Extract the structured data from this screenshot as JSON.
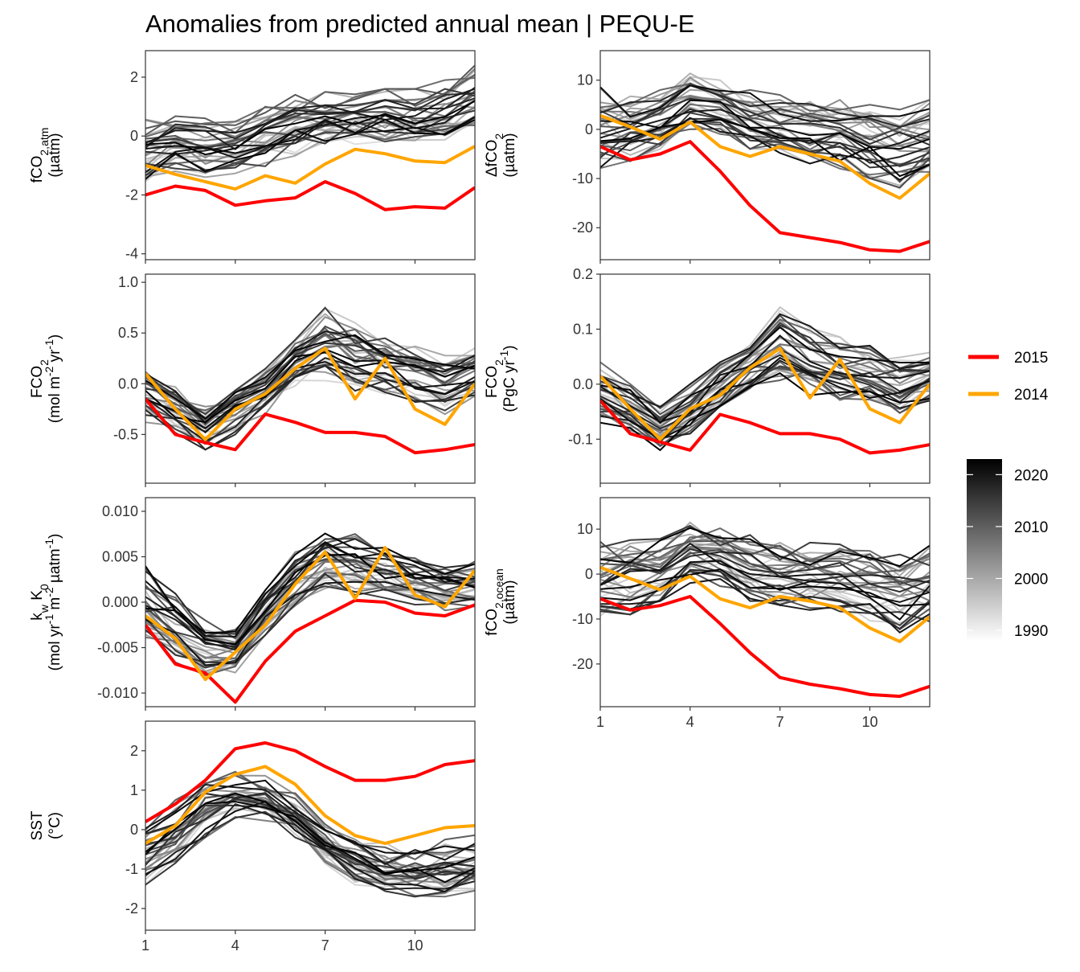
{
  "title": "Anomalies from predicted annual mean | PEQU-E",
  "colors": {
    "highlight_2015": "#ff0000",
    "highlight_2014": "#ffa500",
    "gradient_low": "#ffffff",
    "gradient_high": "#000000"
  },
  "legend": {
    "lines": [
      {
        "label": "2015",
        "color": "#ff0000"
      },
      {
        "label": "2014",
        "color": "#ffa500"
      }
    ],
    "colorbar": {
      "labels": [
        "2020",
        "2010",
        "2000",
        "1990"
      ],
      "min_year": 1988,
      "max_year": 2023
    }
  },
  "chart_data": [
    {
      "type": "line",
      "id": "fco2_atm",
      "ylabel": [
        "fCO2,atm",
        "(µatm)"
      ],
      "xlim": [
        1,
        12
      ],
      "ylim": [
        -4.2,
        2.9
      ],
      "xticks": [
        1,
        4,
        7,
        10
      ],
      "xtick_labels": [],
      "yticks": [
        -4,
        -2,
        0,
        2
      ],
      "ytick_labels": [
        "-4",
        "-2",
        "0",
        "2"
      ],
      "x": [
        1,
        2,
        3,
        4,
        5,
        6,
        7,
        8,
        9,
        10,
        11,
        12
      ],
      "highlight_series": [
        {
          "name": "2015",
          "values": [
            -2.0,
            -1.7,
            -1.85,
            -2.35,
            -2.2,
            -2.1,
            -1.55,
            -1.95,
            -2.5,
            -2.4,
            -2.45,
            -1.75
          ]
        },
        {
          "name": "2014",
          "values": [
            -1.0,
            -1.3,
            -1.55,
            -1.8,
            -1.35,
            -1.6,
            -0.95,
            -0.45,
            -0.6,
            -0.85,
            -0.9,
            -0.35
          ]
        }
      ],
      "background": {
        "lo": [
          -2.0,
          -1.7,
          -1.6,
          -1.4,
          -1.1,
          -0.9,
          -0.7,
          -0.6,
          -0.6,
          -0.6,
          -0.5,
          -0.2
        ],
        "hi": [
          0.8,
          0.9,
          0.6,
          0.5,
          1.0,
          1.4,
          1.5,
          1.5,
          1.6,
          1.6,
          1.9,
          2.4
        ],
        "count": 34,
        "seed": 11
      }
    },
    {
      "type": "line",
      "id": "delta_fco2",
      "ylabel": [
        "ΔfCO2",
        "(µatm)"
      ],
      "xlim": [
        1,
        12
      ],
      "ylim": [
        -26.5,
        16
      ],
      "xticks": [
        1,
        4,
        7,
        10
      ],
      "xtick_labels": [],
      "yticks": [
        -20,
        -10,
        0,
        10
      ],
      "ytick_labels": [
        "-20",
        "-10",
        "0",
        "10"
      ],
      "x": [
        1,
        2,
        3,
        4,
        5,
        6,
        7,
        8,
        9,
        10,
        11,
        12
      ],
      "highlight_series": [
        {
          "name": "2015",
          "values": [
            -3.5,
            -6.2,
            -5.0,
            -2.5,
            -8.5,
            -15.5,
            -21.0,
            -22.0,
            -23.0,
            -24.5,
            -24.8,
            -22.8
          ]
        },
        {
          "name": "2014",
          "values": [
            2.8,
            0.5,
            -2.0,
            1.5,
            -3.5,
            -5.5,
            -3.5,
            -5.0,
            -6.5,
            -11.0,
            -14.0,
            -9.0
          ]
        }
      ],
      "background": {
        "lo": [
          -8.0,
          -7.0,
          -4.0,
          0.0,
          -1.0,
          -4.0,
          -5.0,
          -7.0,
          -8.0,
          -10.0,
          -12.0,
          -10.0
        ],
        "hi": [
          9.0,
          7.0,
          8.0,
          12.0,
          10.0,
          8.0,
          7.0,
          6.0,
          6.0,
          5.0,
          4.0,
          6.0
        ],
        "count": 34,
        "seed": 23
      }
    },
    {
      "type": "line",
      "id": "fco2_flux_area",
      "ylabel": [
        "FCO2",
        "(mol m-2 yr-1)"
      ],
      "xlim": [
        1,
        12
      ],
      "ylim": [
        -0.98,
        1.08
      ],
      "xticks": [
        1,
        4,
        7,
        10
      ],
      "xtick_labels": [],
      "yticks": [
        -0.5,
        0.0,
        0.5,
        1.0
      ],
      "ytick_labels": [
        "-0.5",
        "0.0",
        "0.5",
        "1.0"
      ],
      "x": [
        1,
        2,
        3,
        4,
        5,
        6,
        7,
        8,
        9,
        10,
        11,
        12
      ],
      "highlight_series": [
        {
          "name": "2015",
          "values": [
            -0.15,
            -0.5,
            -0.58,
            -0.65,
            -0.3,
            -0.38,
            -0.48,
            -0.48,
            -0.52,
            -0.68,
            -0.65,
            -0.6
          ]
        },
        {
          "name": "2014",
          "values": [
            0.1,
            -0.25,
            -0.55,
            -0.25,
            -0.1,
            0.15,
            0.35,
            -0.15,
            0.25,
            -0.25,
            -0.4,
            0.0
          ]
        }
      ],
      "background": {
        "lo": [
          -0.4,
          -0.5,
          -0.65,
          -0.5,
          -0.3,
          -0.05,
          0.0,
          -0.1,
          -0.15,
          -0.2,
          -0.3,
          -0.15
        ],
        "hi": [
          0.2,
          0.0,
          -0.2,
          0.0,
          0.2,
          0.45,
          0.75,
          0.6,
          0.5,
          0.4,
          0.3,
          0.35
        ],
        "count": 34,
        "seed": 37
      }
    },
    {
      "type": "line",
      "id": "fco2_flux_total",
      "ylabel": [
        "FCO2",
        "(PgC yr-1)"
      ],
      "xlim": [
        1,
        12
      ],
      "ylim": [
        -0.18,
        0.2
      ],
      "xticks": [
        1,
        4,
        7,
        10
      ],
      "xtick_labels": [],
      "yticks": [
        -0.1,
        0.0,
        0.1,
        0.2
      ],
      "ytick_labels": [
        "-0.1",
        "0.0",
        "0.1",
        "0.2"
      ],
      "x": [
        1,
        2,
        3,
        4,
        5,
        6,
        7,
        8,
        9,
        10,
        11,
        12
      ],
      "highlight_series": [
        {
          "name": "2015",
          "values": [
            -0.03,
            -0.09,
            -0.105,
            -0.12,
            -0.055,
            -0.07,
            -0.09,
            -0.09,
            -0.1,
            -0.125,
            -0.12,
            -0.11
          ]
        },
        {
          "name": "2014",
          "values": [
            0.015,
            -0.045,
            -0.1,
            -0.045,
            -0.02,
            0.03,
            0.065,
            -0.025,
            0.045,
            -0.045,
            -0.07,
            0.0
          ]
        }
      ],
      "background": {
        "lo": [
          -0.07,
          -0.09,
          -0.12,
          -0.09,
          -0.05,
          -0.01,
          0.0,
          -0.02,
          -0.03,
          -0.04,
          -0.06,
          -0.03
        ],
        "hi": [
          0.04,
          0.0,
          -0.04,
          0.0,
          0.04,
          0.08,
          0.14,
          0.11,
          0.09,
          0.07,
          0.05,
          0.06
        ],
        "count": 34,
        "seed": 41
      }
    },
    {
      "type": "line",
      "id": "kw_k0",
      "ylabel": [
        "kw K0",
        "(mol yr-1 m-2 µatm-1)"
      ],
      "xlim": [
        1,
        12
      ],
      "ylim": [
        -0.0115,
        0.0115
      ],
      "xticks": [
        1,
        4,
        7,
        10
      ],
      "xtick_labels": [],
      "yticks": [
        -0.01,
        -0.005,
        0.0,
        0.005,
        0.01
      ],
      "ytick_labels": [
        "-0.010",
        "-0.005",
        "0.000",
        "0.005",
        "0.010"
      ],
      "x": [
        1,
        2,
        3,
        4,
        5,
        6,
        7,
        8,
        9,
        10,
        11,
        12
      ],
      "highlight_series": [
        {
          "name": "2015",
          "values": [
            -0.0025,
            -0.0068,
            -0.0078,
            -0.011,
            -0.0065,
            -0.0032,
            -0.0015,
            0.0002,
            0.0,
            -0.0012,
            -0.0015,
            -0.0003
          ]
        },
        {
          "name": "2014",
          "values": [
            -0.0015,
            -0.004,
            -0.0085,
            -0.0055,
            -0.0025,
            0.002,
            0.0055,
            0.0004,
            0.006,
            0.0008,
            -0.0005,
            0.0035
          ]
        }
      ],
      "background": {
        "lo": [
          -0.005,
          -0.007,
          -0.009,
          -0.008,
          -0.004,
          -0.0005,
          0.001,
          0.0005,
          0.0,
          -0.0005,
          -0.001,
          -0.001
        ],
        "hi": [
          0.004,
          0.0015,
          -0.002,
          -0.003,
          0.0015,
          0.0055,
          0.008,
          0.0075,
          0.006,
          0.005,
          0.004,
          0.0045
        ],
        "count": 34,
        "seed": 53
      }
    },
    {
      "type": "line",
      "id": "fco2_ocean",
      "ylabel": [
        "fCO2,ocean",
        "(µatm)"
      ],
      "xlim": [
        1,
        12
      ],
      "ylim": [
        -29.5,
        17
      ],
      "xticks": [
        1,
        4,
        7,
        10
      ],
      "xtick_labels": [
        "1",
        "4",
        "7",
        "10"
      ],
      "yticks": [
        -20,
        -10,
        0,
        10
      ],
      "ytick_labels": [
        "-20",
        "-10",
        "0",
        "10"
      ],
      "x": [
        1,
        2,
        3,
        4,
        5,
        6,
        7,
        8,
        9,
        10,
        11,
        12
      ],
      "highlight_series": [
        {
          "name": "2015",
          "values": [
            -5.5,
            -8.0,
            -7.0,
            -5.0,
            -11.0,
            -17.5,
            -23.0,
            -24.5,
            -25.5,
            -26.8,
            -27.2,
            -25.0
          ]
        },
        {
          "name": "2014",
          "values": [
            1.5,
            -1.0,
            -3.5,
            -0.5,
            -5.5,
            -7.5,
            -5.0,
            -6.0,
            -7.5,
            -12.0,
            -15.0,
            -9.5
          ]
        }
      ],
      "background": {
        "lo": [
          -10.0,
          -9.0,
          -6.0,
          -2.0,
          -3.0,
          -6.0,
          -7.0,
          -8.0,
          -9.0,
          -11.0,
          -13.0,
          -11.0
        ],
        "hi": [
          9.0,
          8.0,
          8.5,
          12.0,
          11.0,
          9.0,
          8.0,
          7.0,
          7.0,
          6.0,
          5.0,
          7.0
        ],
        "count": 34,
        "seed": 67
      }
    },
    {
      "type": "line",
      "id": "sst",
      "ylabel": [
        "SST",
        "(°C)"
      ],
      "xlim": [
        1,
        12
      ],
      "ylim": [
        -2.55,
        2.75
      ],
      "xticks": [
        1,
        4,
        7,
        10
      ],
      "xtick_labels": [
        "1",
        "4",
        "7",
        "10"
      ],
      "yticks": [
        -2,
        -1,
        0,
        1,
        2
      ],
      "ytick_labels": [
        "-2",
        "-1",
        "0",
        "1",
        "2"
      ],
      "x": [
        1,
        2,
        3,
        4,
        5,
        6,
        7,
        8,
        9,
        10,
        11,
        12
      ],
      "highlight_series": [
        {
          "name": "2015",
          "values": [
            0.2,
            0.65,
            1.25,
            2.05,
            2.2,
            2.0,
            1.6,
            1.25,
            1.25,
            1.35,
            1.65,
            1.75
          ]
        },
        {
          "name": "2014",
          "values": [
            -0.35,
            0.1,
            0.95,
            1.4,
            1.6,
            1.15,
            0.35,
            -0.15,
            -0.35,
            -0.15,
            0.05,
            0.1
          ]
        }
      ],
      "background": {
        "lo": [
          -1.4,
          -0.9,
          -0.2,
          0.3,
          0.2,
          -0.2,
          -0.9,
          -1.4,
          -1.6,
          -1.7,
          -1.7,
          -1.6
        ],
        "hi": [
          0.6,
          1.0,
          1.5,
          1.6,
          1.4,
          1.0,
          0.4,
          0.0,
          -0.3,
          -0.3,
          -0.2,
          -0.1
        ],
        "count": 34,
        "seed": 79
      }
    }
  ]
}
